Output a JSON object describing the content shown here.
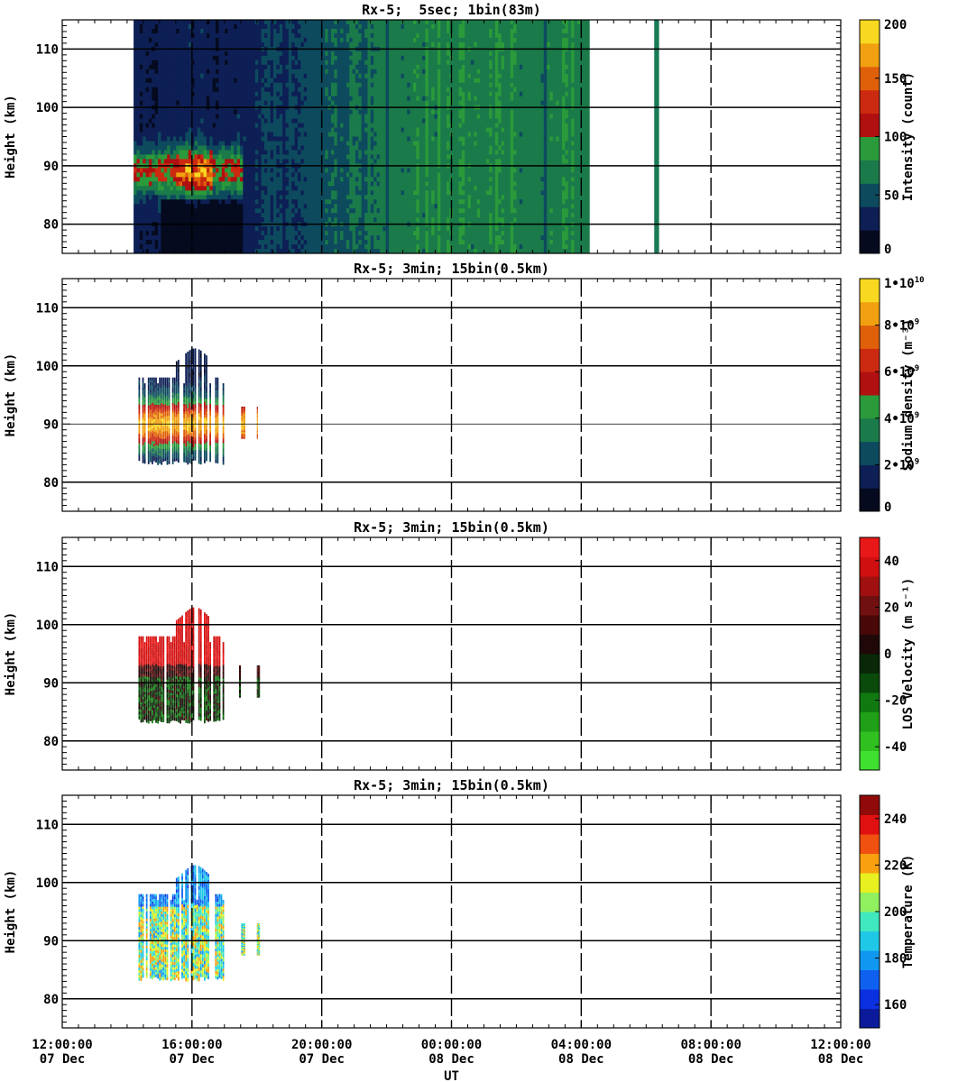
{
  "figure": {
    "xlabel": "UT",
    "ylabel": "Height (km)",
    "x_ticks": [
      {
        "time": "12:00:00",
        "date": "07 Dec",
        "hours": 0
      },
      {
        "time": "16:00:00",
        "date": "07 Dec",
        "hours": 4
      },
      {
        "time": "20:00:00",
        "date": "07 Dec",
        "hours": 8
      },
      {
        "time": "00:00:00",
        "date": "08 Dec",
        "hours": 12
      },
      {
        "time": "04:00:00",
        "date": "08 Dec",
        "hours": 16
      },
      {
        "time": "08:00:00",
        "date": "08 Dec",
        "hours": 20
      },
      {
        "time": "12:00:00",
        "date": "08 Dec",
        "hours": 24
      }
    ],
    "y_ticks": [
      "80",
      "90",
      "100",
      "110"
    ]
  },
  "chart_data": [
    {
      "type": "heatmap",
      "title": "Rx-5;  5sec; 1bin(83m)",
      "xlabel": "UT",
      "ylabel": "Height (km)",
      "xlim_hours": [
        0,
        24
      ],
      "ylim": [
        75,
        115
      ],
      "colorbar_label": "Intensity (count)",
      "colorbar_ticks": [
        "0",
        "50",
        "100",
        "150",
        "200"
      ],
      "colorbar_range": [
        0,
        200
      ],
      "colors": [
        "#050a1e",
        "#0d1f54",
        "#0d4a5e",
        "#1a7a4a",
        "#2a9a3a",
        "#b01010",
        "#cc2a10",
        "#e0600a",
        "#f0a010",
        "#f8d820"
      ],
      "data_windows_hours": [
        [
          2.2,
          16.25
        ],
        [
          18.25,
          18.4
        ]
      ],
      "layer_center_km": 89,
      "note": ""
    },
    {
      "type": "heatmap",
      "title": "Rx-5; 3min; 15bin(0.5km)",
      "xlabel": "UT",
      "ylabel": "Height (km)",
      "xlim_hours": [
        0,
        24
      ],
      "ylim": [
        75,
        115
      ],
      "colorbar_label": "Sodium density (m⁻³)",
      "colorbar_ticks": [
        {
          "base": "0",
          "exp": ""
        },
        {
          "base": "2•10",
          "exp": "9"
        },
        {
          "base": "4•10",
          "exp": "9"
        },
        {
          "base": "6•10",
          "exp": "9"
        },
        {
          "base": "8•10",
          "exp": "9"
        },
        {
          "base": "1•10",
          "exp": "10"
        }
      ],
      "colorbar_range": [
        0,
        10000000000
      ],
      "colors": [
        "#050a1e",
        "#0d1f54",
        "#0d4a5e",
        "#1a7a4a",
        "#2a9a3a",
        "#b01010",
        "#cc2a10",
        "#e0600a",
        "#f0a010",
        "#f8d820"
      ],
      "data_windows_hours": [
        [
          2.35,
          5.0
        ],
        [
          5.45,
          5.65
        ],
        [
          6.0,
          6.1
        ]
      ],
      "layer_center_km": 90
    },
    {
      "type": "heatmap",
      "title": "Rx-5; 3min; 15bin(0.5km)",
      "xlabel": "UT",
      "ylabel": "Height (km)",
      "xlim_hours": [
        0,
        24
      ],
      "ylim": [
        75,
        115
      ],
      "colorbar_label": "LOS Velocity (m s⁻¹)",
      "colorbar_ticks": [
        "-40",
        "-20",
        "0",
        "20",
        "40"
      ],
      "colorbar_range": [
        -50,
        50
      ],
      "colors": [
        "#40e030",
        "#30c020",
        "#20a018",
        "#107a10",
        "#0a4a0a",
        "#082808",
        "#200808",
        "#480808",
        "#701010",
        "#a01010",
        "#d01010",
        "#e81818"
      ],
      "data_windows_hours": [
        [
          2.35,
          5.0
        ],
        [
          5.45,
          5.65
        ],
        [
          6.0,
          6.1
        ]
      ]
    },
    {
      "type": "heatmap",
      "title": "Rx-5; 3min; 15bin(0.5km)",
      "xlabel": "UT",
      "ylabel": "Height (km)",
      "xlim_hours": [
        0,
        24
      ],
      "ylim": [
        75,
        115
      ],
      "colorbar_label": "Temperature (K)",
      "colorbar_ticks": [
        "160",
        "180",
        "200",
        "220",
        "240"
      ],
      "colorbar_range": [
        150,
        250
      ],
      "colors": [
        "#0a1a9a",
        "#0a30e0",
        "#1060f0",
        "#1098f0",
        "#20c8e8",
        "#40e8c0",
        "#90f060",
        "#e8f020",
        "#f8a010",
        "#f05010",
        "#e01010",
        "#900a0a"
      ],
      "data_windows_hours": [
        [
          2.35,
          5.0
        ],
        [
          5.45,
          5.65
        ],
        [
          6.0,
          6.1
        ]
      ]
    }
  ]
}
